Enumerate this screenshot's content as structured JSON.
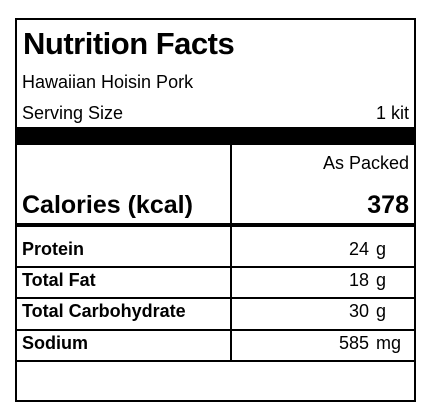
{
  "header": {
    "title": "Nutrition Facts",
    "product": "Hawaiian Hoisin Pork",
    "serving_label": "Serving Size",
    "serving_value": "1 kit"
  },
  "table": {
    "column_header": "As Packed",
    "calories": {
      "label": "Calories (kcal)",
      "value": 378
    },
    "rows": [
      {
        "label": "Protein",
        "value": 24,
        "unit": "g"
      },
      {
        "label": "Total Fat",
        "value": 18,
        "unit": "g"
      },
      {
        "label": "Total Carbohydrate",
        "value": 30,
        "unit": "g"
      },
      {
        "label": "Sodium",
        "value": 585,
        "unit": "mg"
      }
    ]
  }
}
